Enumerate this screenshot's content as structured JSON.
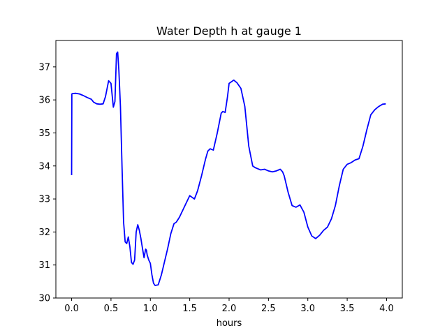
{
  "chart_data": {
    "type": "line",
    "title": "Water Depth h at gauge 1",
    "xlabel": "hours",
    "ylabel": "",
    "xlim": [
      -0.2,
      4.2
    ],
    "ylim": [
      30.0,
      37.8
    ],
    "xticks": [
      0.0,
      0.5,
      1.0,
      1.5,
      2.0,
      2.5,
      3.0,
      3.5,
      4.0
    ],
    "xtick_labels": [
      "0.0",
      "0.5",
      "1.0",
      "1.5",
      "2.0",
      "2.5",
      "3.0",
      "3.5",
      "4.0"
    ],
    "yticks": [
      30,
      31,
      32,
      33,
      34,
      35,
      36,
      37
    ],
    "ytick_labels": [
      "30",
      "31",
      "32",
      "33",
      "34",
      "35",
      "36",
      "37"
    ],
    "grid": false,
    "series": [
      {
        "color": "#0000ff",
        "x": [
          0.0,
          0.003,
          0.01,
          0.05,
          0.1,
          0.15,
          0.2,
          0.25,
          0.28,
          0.32,
          0.36,
          0.4,
          0.43,
          0.47,
          0.5,
          0.53,
          0.55,
          0.57,
          0.585,
          0.6,
          0.62,
          0.64,
          0.66,
          0.68,
          0.7,
          0.72,
          0.74,
          0.76,
          0.78,
          0.8,
          0.82,
          0.84,
          0.86,
          0.88,
          0.9,
          0.92,
          0.94,
          0.95,
          0.96,
          0.98,
          1.0,
          1.02,
          1.04,
          1.06,
          1.1,
          1.14,
          1.18,
          1.22,
          1.26,
          1.3,
          1.33,
          1.37,
          1.4,
          1.45,
          1.5,
          1.53,
          1.56,
          1.6,
          1.65,
          1.7,
          1.73,
          1.76,
          1.8,
          1.85,
          1.9,
          1.92,
          1.95,
          1.98,
          2.0,
          2.03,
          2.06,
          2.1,
          2.15,
          2.2,
          2.25,
          2.3,
          2.33,
          2.36,
          2.4,
          2.45,
          2.5,
          2.55,
          2.6,
          2.65,
          2.68,
          2.7,
          2.75,
          2.8,
          2.85,
          2.9,
          2.95,
          3.0,
          3.05,
          3.1,
          3.15,
          3.2,
          3.25,
          3.3,
          3.35,
          3.4,
          3.45,
          3.5,
          3.55,
          3.6,
          3.65,
          3.7,
          3.75,
          3.8,
          3.85,
          3.9,
          3.95,
          3.99
        ],
        "y": [
          33.72,
          36.18,
          36.19,
          36.2,
          36.18,
          36.13,
          36.07,
          36.02,
          35.93,
          35.88,
          35.87,
          35.88,
          36.1,
          36.58,
          36.5,
          35.78,
          35.95,
          37.4,
          37.45,
          36.9,
          35.8,
          34.0,
          32.3,
          31.7,
          31.65,
          31.85,
          31.55,
          31.08,
          31.02,
          31.15,
          32.0,
          32.22,
          32.05,
          31.8,
          31.5,
          31.22,
          31.48,
          31.45,
          31.3,
          31.15,
          31.05,
          30.7,
          30.45,
          30.38,
          30.4,
          30.7,
          31.1,
          31.5,
          31.95,
          32.25,
          32.3,
          32.45,
          32.6,
          32.85,
          33.1,
          33.05,
          33.0,
          33.25,
          33.7,
          34.2,
          34.45,
          34.52,
          34.48,
          35.0,
          35.6,
          35.65,
          35.62,
          36.1,
          36.5,
          36.55,
          36.6,
          36.52,
          36.35,
          35.8,
          34.6,
          34.0,
          33.95,
          33.92,
          33.88,
          33.9,
          33.85,
          33.82,
          33.85,
          33.9,
          33.82,
          33.7,
          33.2,
          32.8,
          32.75,
          32.82,
          32.6,
          32.15,
          31.88,
          31.8,
          31.9,
          32.05,
          32.15,
          32.4,
          32.8,
          33.4,
          33.9,
          34.05,
          34.1,
          34.18,
          34.22,
          34.6,
          35.1,
          35.55,
          35.7,
          35.8,
          35.87,
          35.88
        ]
      }
    ]
  }
}
